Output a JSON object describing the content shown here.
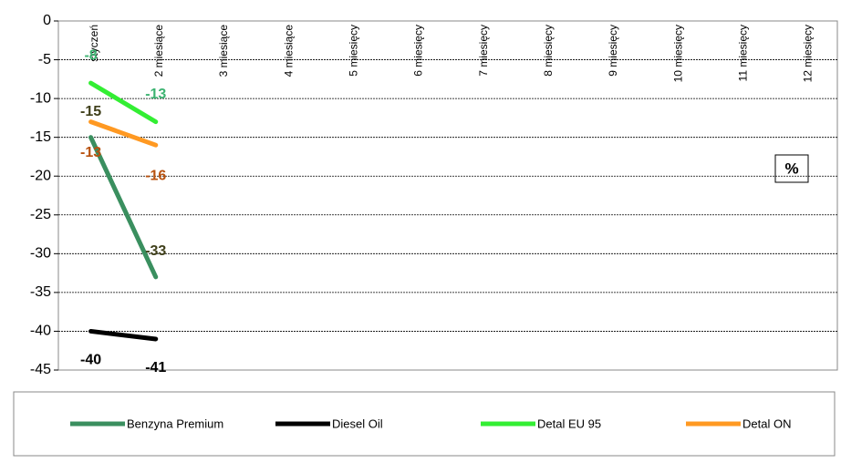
{
  "chart_data": {
    "type": "line",
    "categories": [
      "styczeń",
      "2 miesiące",
      "3 miesiące",
      "4 miesiące",
      "5 miesięcy",
      "6 miesięcy",
      "7 miesięcy",
      "8 miesięcy",
      "9 miesięcy",
      "10 miesięcy",
      "11 miesięcy",
      "12 miesięcy"
    ],
    "series": [
      {
        "name": "Benzyna Premium",
        "color": "#3a8f5f",
        "label_color": "#3f3f1a",
        "values": [
          -15,
          -33,
          null,
          null,
          null,
          null,
          null,
          null,
          null,
          null,
          null,
          null
        ]
      },
      {
        "name": "Diesel Oil",
        "color": "#000000",
        "label_color": "#000000",
        "values": [
          -40,
          -41,
          null,
          null,
          null,
          null,
          null,
          null,
          null,
          null,
          null,
          null
        ]
      },
      {
        "name": "Detal EU 95",
        "color": "#33ee33",
        "label_color": "#3cb371",
        "values": [
          -8,
          -13,
          null,
          null,
          null,
          null,
          null,
          null,
          null,
          null,
          null,
          null
        ]
      },
      {
        "name": "Detal ON",
        "color": "#ff9922",
        "label_color": "#b8520f",
        "values": [
          -13,
          -16,
          null,
          null,
          null,
          null,
          null,
          null,
          null,
          null,
          null,
          null
        ]
      }
    ],
    "unit_box": "%",
    "ylim": [
      -45,
      0
    ],
    "yticks": [
      0,
      -5,
      -10,
      -15,
      -20,
      -25,
      -30,
      -35,
      -40,
      -45
    ],
    "grid": true,
    "legend": "bottom"
  }
}
